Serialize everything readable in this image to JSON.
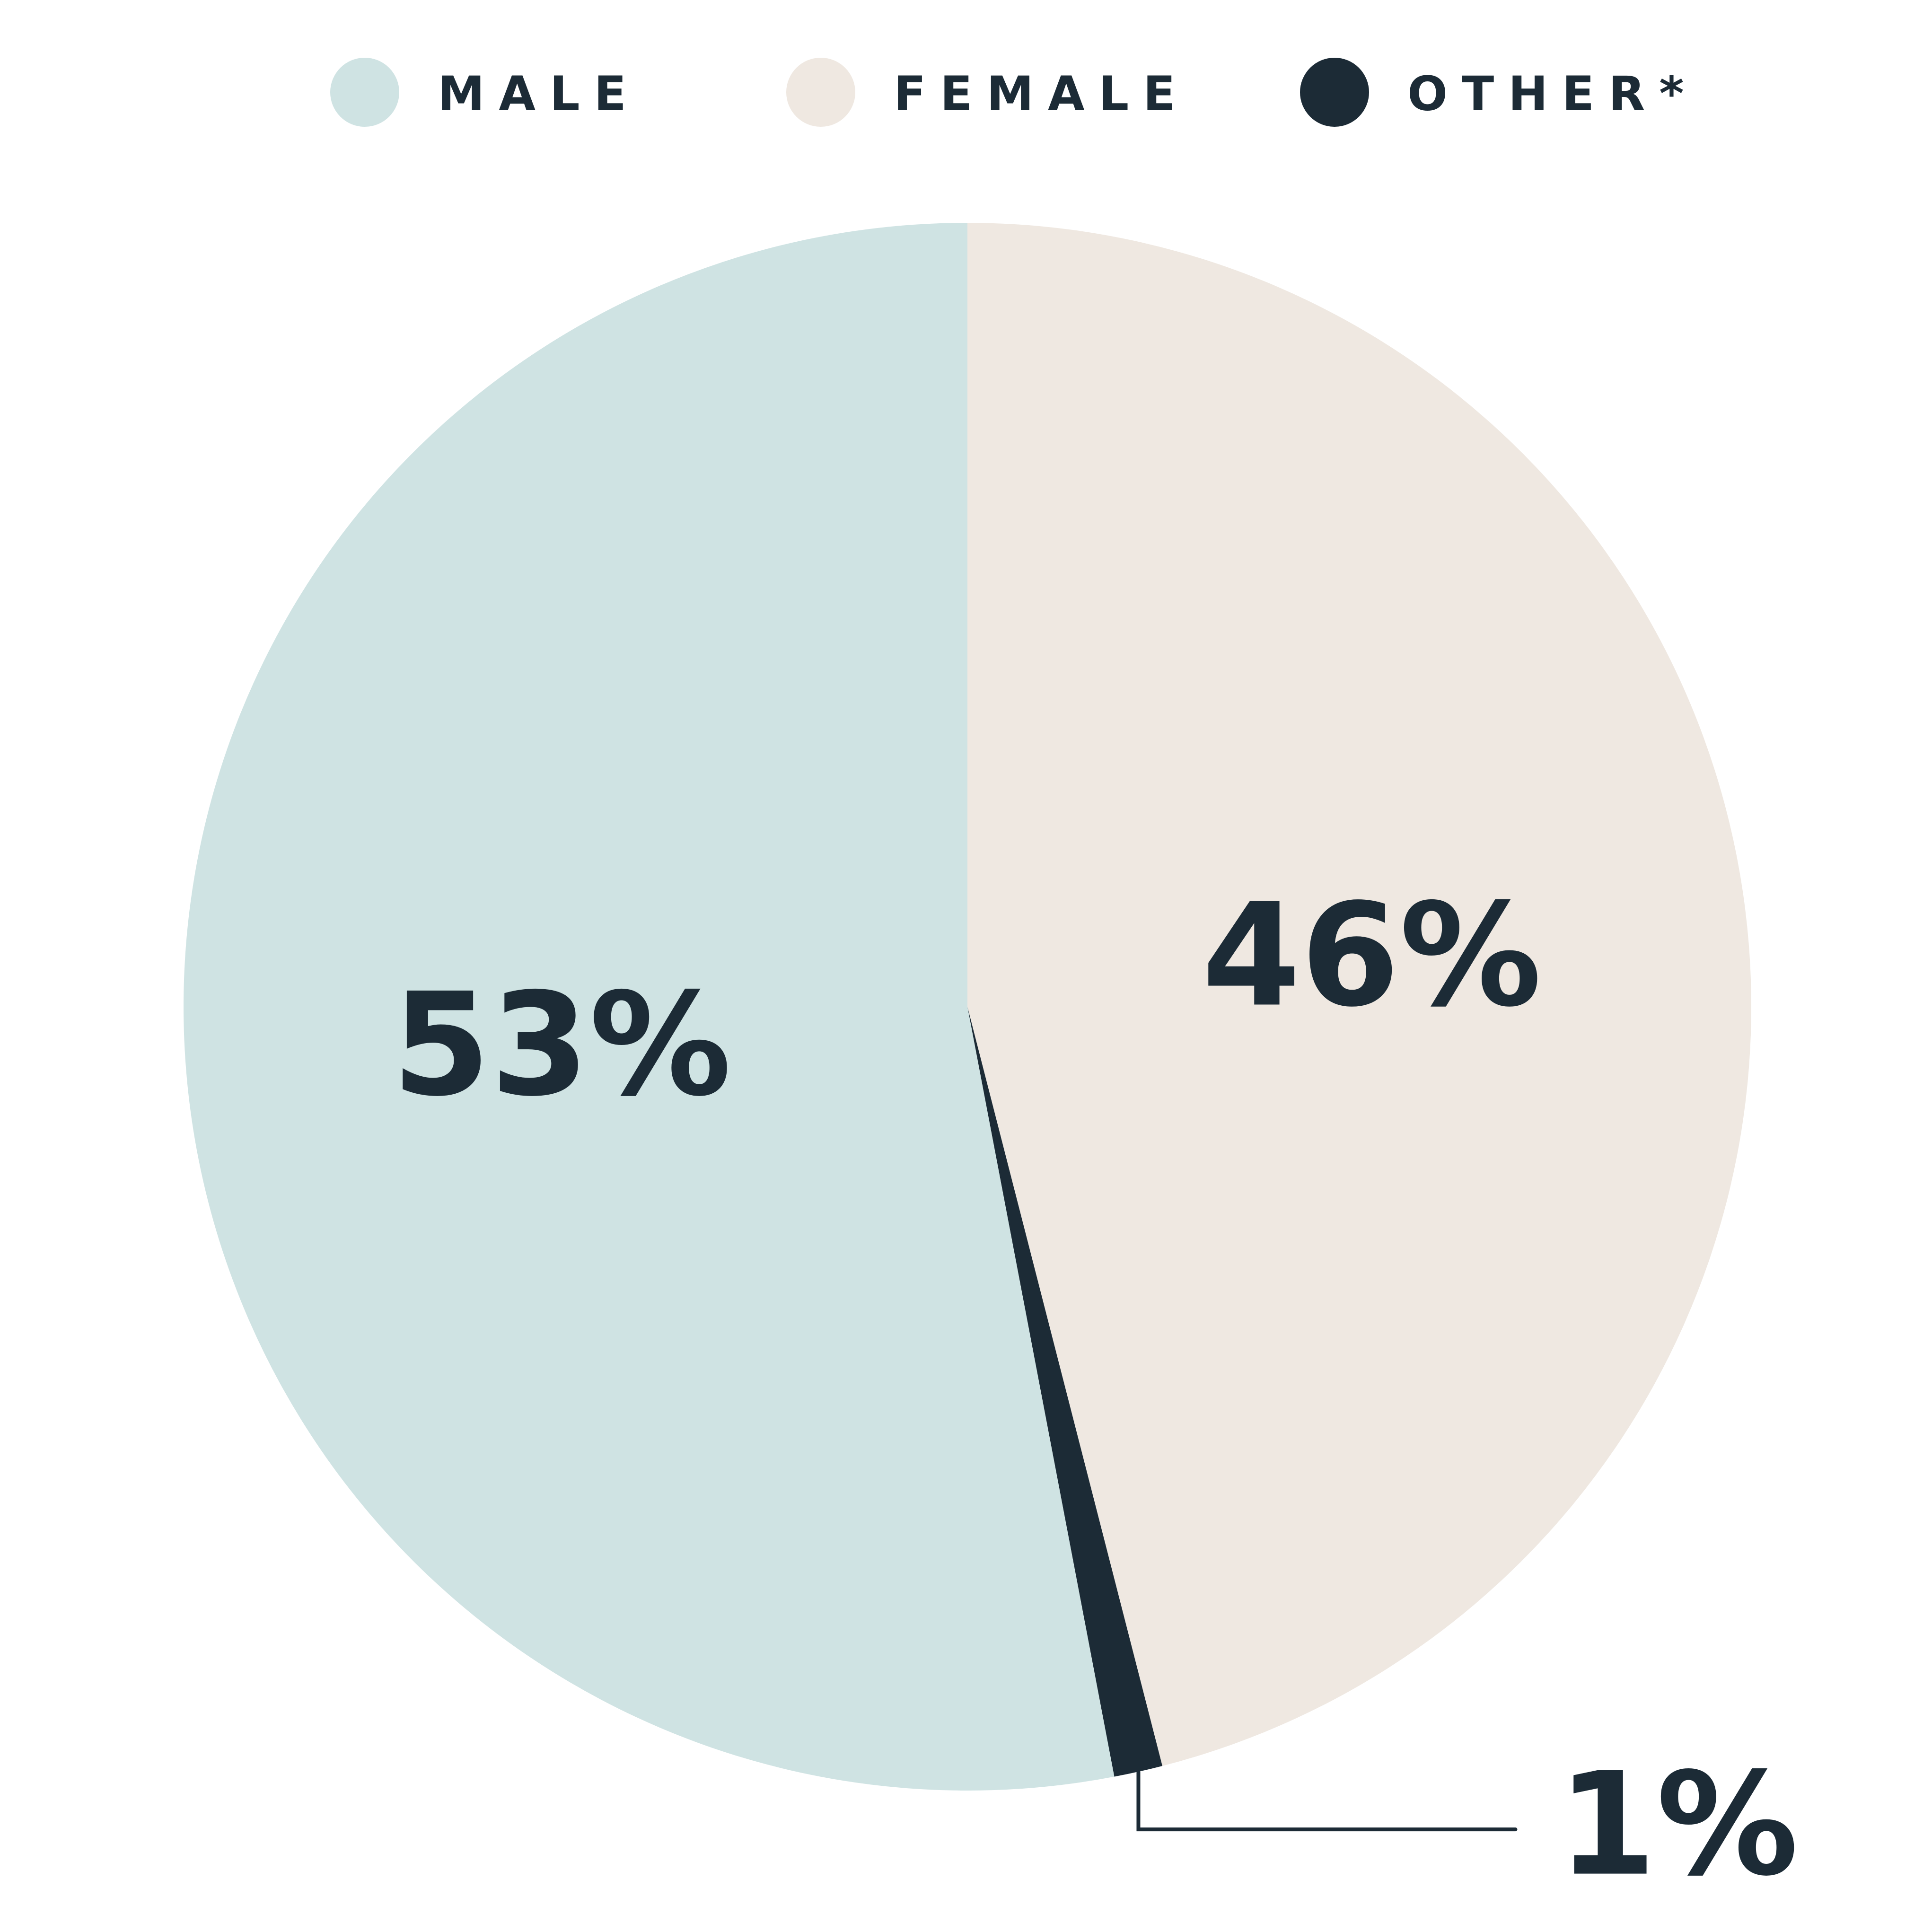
{
  "chart_data": {
    "type": "pie",
    "categories": [
      "MALE",
      "FEMALE",
      "OTHER*"
    ],
    "values": [
      53,
      46,
      1
    ],
    "value_labels": [
      "53%",
      "46%",
      "1%"
    ],
    "colors": [
      "#cfe3e3",
      "#efe8e1",
      "#1c2b36"
    ],
    "legend": "top"
  }
}
